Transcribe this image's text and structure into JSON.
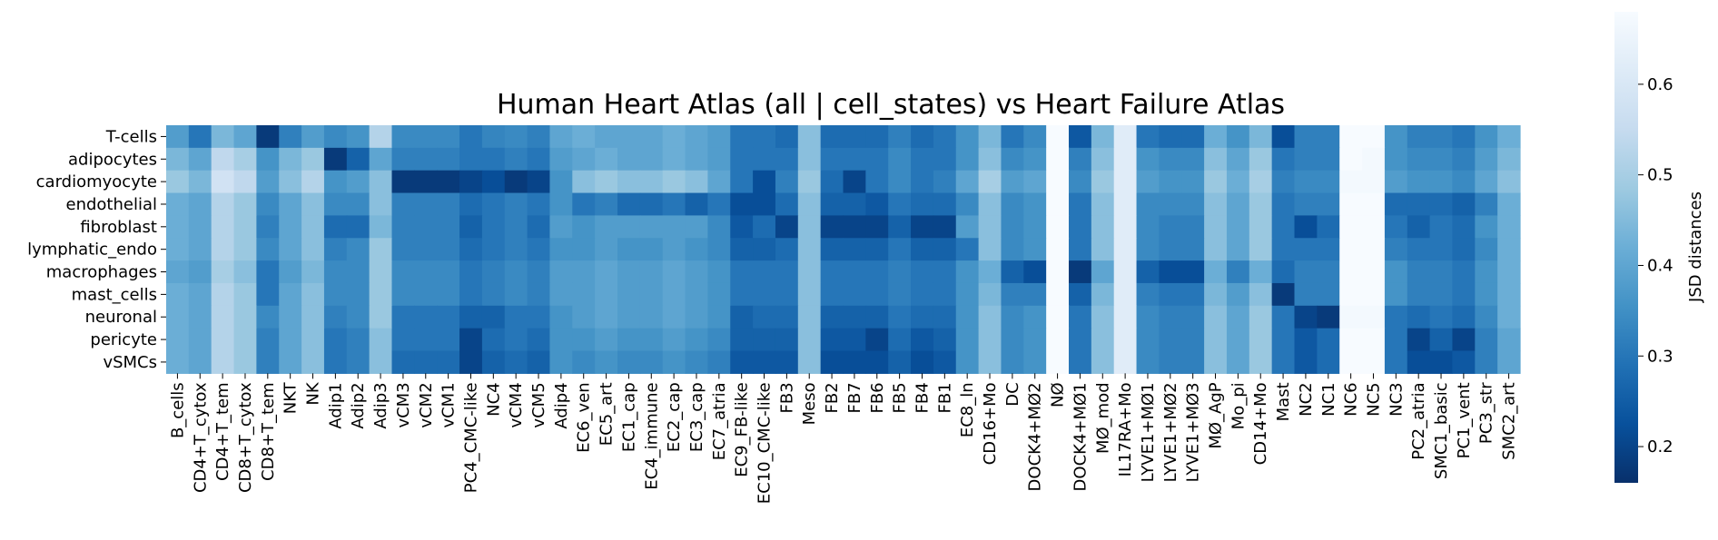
{
  "chart_data": {
    "type": "heatmap",
    "title": "Human Heart Atlas (all | cell_states) vs Heart Failure Atlas",
    "xlabel": "",
    "ylabel": "",
    "colorbar_label": "JSD distances",
    "colorbar_ticks": [
      "0.2",
      "0.3",
      "0.4",
      "0.5",
      "0.6"
    ],
    "vmin": 0.16,
    "vmax": 0.68,
    "colormap": [
      "#08306b",
      "#08519c",
      "#2171b5",
      "#4292c6",
      "#6baed6",
      "#9ecae1",
      "#c6dbef",
      "#deebf7",
      "#f7fbff"
    ],
    "rows": [
      "T-cells",
      "adipocytes",
      "cardiomyocyte",
      "endothelial",
      "fibroblast",
      "lymphatic_endo",
      "macrophages",
      "mast_cells",
      "neuronal",
      "pericyte",
      "vSMCs"
    ],
    "columns": [
      "B_cells",
      "CD4+T_cytox",
      "CD4+T_tem",
      "CD8+T_cytox",
      "CD8+T_tem",
      "NKT",
      "NK",
      "Adip1",
      "Adip2",
      "Adip3",
      "vCM3",
      "vCM2",
      "vCM1",
      "PC4_CMC-like",
      "NC4",
      "vCM4",
      "vCM5",
      "Adip4",
      "EC6_ven",
      "EC5_art",
      "EC1_cap",
      "EC4_immune",
      "EC2_cap",
      "EC3_cap",
      "EC7_atria",
      "EC9_FB-like",
      "EC10_CMC-like",
      "FB3",
      "Meso",
      "FB2",
      "FB7",
      "FB6",
      "FB5",
      "FB4",
      "FB1",
      "EC8_ln",
      "CD16+Mo",
      "DC",
      "DOCK4+MØ2",
      "NØ",
      "DOCK4+MØ1",
      "MØ_mod",
      "IL17RA+Mo",
      "LYVE1+MØ1",
      "LYVE1+MØ2",
      "LYVE1+MØ3",
      "MØ_AgP",
      "Mo_pi",
      "CD14+Mo",
      "Mast",
      "NC2",
      "NC1",
      "NC6",
      "NC5",
      "NC3",
      "PC2_atria",
      "SMC1_basic",
      "PC1_vent",
      "PC3_str",
      "SMC2_art"
    ],
    "values": [
      [
        0.38,
        0.3,
        0.44,
        0.4,
        0.18,
        0.32,
        0.38,
        0.34,
        0.36,
        0.52,
        0.34,
        0.34,
        0.34,
        0.3,
        0.33,
        0.34,
        0.32,
        0.4,
        0.42,
        0.4,
        0.4,
        0.4,
        0.42,
        0.4,
        0.38,
        0.3,
        0.3,
        0.28,
        0.46,
        0.28,
        0.28,
        0.28,
        0.32,
        0.28,
        0.3,
        0.36,
        0.44,
        0.3,
        0.34,
        0.68,
        0.24,
        0.44,
        0.62,
        0.3,
        0.28,
        0.28,
        0.42,
        0.36,
        0.44,
        0.22,
        0.32,
        0.32,
        0.68,
        0.68,
        0.36,
        0.32,
        0.32,
        0.3,
        0.36,
        0.42
      ],
      [
        0.44,
        0.4,
        0.54,
        0.5,
        0.36,
        0.44,
        0.48,
        0.18,
        0.26,
        0.4,
        0.32,
        0.32,
        0.32,
        0.3,
        0.3,
        0.32,
        0.3,
        0.38,
        0.4,
        0.42,
        0.4,
        0.4,
        0.42,
        0.4,
        0.38,
        0.3,
        0.3,
        0.3,
        0.46,
        0.3,
        0.3,
        0.3,
        0.34,
        0.3,
        0.3,
        0.36,
        0.46,
        0.34,
        0.36,
        0.68,
        0.32,
        0.46,
        0.62,
        0.36,
        0.34,
        0.34,
        0.46,
        0.4,
        0.48,
        0.3,
        0.32,
        0.32,
        0.68,
        0.67,
        0.36,
        0.34,
        0.34,
        0.32,
        0.38,
        0.44
      ],
      [
        0.48,
        0.44,
        0.58,
        0.54,
        0.38,
        0.46,
        0.52,
        0.36,
        0.38,
        0.46,
        0.18,
        0.18,
        0.18,
        0.2,
        0.22,
        0.18,
        0.2,
        0.36,
        0.46,
        0.48,
        0.46,
        0.46,
        0.48,
        0.46,
        0.4,
        0.3,
        0.22,
        0.32,
        0.48,
        0.28,
        0.2,
        0.3,
        0.34,
        0.3,
        0.32,
        0.4,
        0.5,
        0.38,
        0.4,
        0.68,
        0.34,
        0.48,
        0.62,
        0.38,
        0.36,
        0.36,
        0.48,
        0.42,
        0.5,
        0.32,
        0.34,
        0.34,
        0.67,
        0.67,
        0.38,
        0.36,
        0.36,
        0.34,
        0.4,
        0.46
      ],
      [
        0.42,
        0.4,
        0.52,
        0.48,
        0.34,
        0.4,
        0.46,
        0.34,
        0.34,
        0.46,
        0.32,
        0.32,
        0.32,
        0.28,
        0.3,
        0.32,
        0.3,
        0.36,
        0.3,
        0.32,
        0.28,
        0.28,
        0.3,
        0.26,
        0.3,
        0.22,
        0.22,
        0.28,
        0.46,
        0.26,
        0.26,
        0.24,
        0.3,
        0.28,
        0.28,
        0.34,
        0.46,
        0.34,
        0.36,
        0.68,
        0.3,
        0.46,
        0.62,
        0.34,
        0.34,
        0.34,
        0.46,
        0.4,
        0.48,
        0.3,
        0.32,
        0.32,
        0.68,
        0.68,
        0.28,
        0.28,
        0.28,
        0.26,
        0.32,
        0.42
      ],
      [
        0.42,
        0.4,
        0.52,
        0.48,
        0.32,
        0.4,
        0.46,
        0.28,
        0.28,
        0.44,
        0.32,
        0.32,
        0.32,
        0.26,
        0.3,
        0.32,
        0.28,
        0.38,
        0.36,
        0.38,
        0.38,
        0.38,
        0.38,
        0.38,
        0.34,
        0.24,
        0.28,
        0.2,
        0.46,
        0.2,
        0.2,
        0.2,
        0.26,
        0.2,
        0.2,
        0.38,
        0.46,
        0.34,
        0.36,
        0.68,
        0.3,
        0.46,
        0.62,
        0.34,
        0.32,
        0.32,
        0.46,
        0.4,
        0.48,
        0.3,
        0.22,
        0.28,
        0.68,
        0.68,
        0.3,
        0.26,
        0.3,
        0.28,
        0.36,
        0.42
      ],
      [
        0.42,
        0.4,
        0.52,
        0.48,
        0.34,
        0.4,
        0.46,
        0.32,
        0.34,
        0.48,
        0.32,
        0.32,
        0.32,
        0.28,
        0.3,
        0.32,
        0.3,
        0.36,
        0.36,
        0.38,
        0.36,
        0.36,
        0.38,
        0.36,
        0.34,
        0.26,
        0.26,
        0.28,
        0.46,
        0.26,
        0.26,
        0.26,
        0.3,
        0.26,
        0.26,
        0.3,
        0.46,
        0.34,
        0.36,
        0.68,
        0.3,
        0.46,
        0.62,
        0.34,
        0.32,
        0.32,
        0.46,
        0.4,
        0.48,
        0.3,
        0.3,
        0.3,
        0.68,
        0.68,
        0.32,
        0.3,
        0.3,
        0.28,
        0.34,
        0.42
      ],
      [
        0.4,
        0.38,
        0.5,
        0.46,
        0.3,
        0.38,
        0.44,
        0.34,
        0.34,
        0.48,
        0.34,
        0.34,
        0.34,
        0.3,
        0.32,
        0.34,
        0.32,
        0.38,
        0.38,
        0.4,
        0.38,
        0.38,
        0.4,
        0.38,
        0.36,
        0.3,
        0.3,
        0.3,
        0.46,
        0.3,
        0.3,
        0.3,
        0.32,
        0.3,
        0.3,
        0.36,
        0.42,
        0.26,
        0.22,
        0.68,
        0.18,
        0.4,
        0.62,
        0.26,
        0.22,
        0.22,
        0.42,
        0.32,
        0.42,
        0.28,
        0.32,
        0.32,
        0.68,
        0.68,
        0.36,
        0.32,
        0.32,
        0.3,
        0.36,
        0.42
      ],
      [
        0.42,
        0.4,
        0.52,
        0.48,
        0.3,
        0.4,
        0.46,
        0.34,
        0.34,
        0.48,
        0.34,
        0.34,
        0.34,
        0.3,
        0.32,
        0.34,
        0.32,
        0.38,
        0.38,
        0.4,
        0.38,
        0.38,
        0.4,
        0.38,
        0.36,
        0.3,
        0.3,
        0.3,
        0.46,
        0.3,
        0.3,
        0.3,
        0.32,
        0.3,
        0.3,
        0.36,
        0.44,
        0.32,
        0.32,
        0.68,
        0.26,
        0.44,
        0.62,
        0.32,
        0.3,
        0.3,
        0.44,
        0.38,
        0.46,
        0.18,
        0.32,
        0.32,
        0.68,
        0.68,
        0.36,
        0.32,
        0.32,
        0.3,
        0.36,
        0.42
      ],
      [
        0.42,
        0.4,
        0.52,
        0.48,
        0.34,
        0.4,
        0.46,
        0.32,
        0.34,
        0.48,
        0.3,
        0.3,
        0.3,
        0.26,
        0.26,
        0.3,
        0.3,
        0.36,
        0.38,
        0.4,
        0.38,
        0.38,
        0.4,
        0.38,
        0.36,
        0.26,
        0.28,
        0.28,
        0.46,
        0.26,
        0.26,
        0.26,
        0.3,
        0.28,
        0.28,
        0.36,
        0.46,
        0.34,
        0.36,
        0.68,
        0.3,
        0.46,
        0.62,
        0.34,
        0.32,
        0.32,
        0.46,
        0.4,
        0.48,
        0.3,
        0.2,
        0.18,
        0.67,
        0.67,
        0.3,
        0.28,
        0.3,
        0.28,
        0.34,
        0.42
      ],
      [
        0.42,
        0.4,
        0.52,
        0.48,
        0.32,
        0.4,
        0.46,
        0.3,
        0.32,
        0.46,
        0.3,
        0.3,
        0.3,
        0.2,
        0.28,
        0.3,
        0.28,
        0.36,
        0.36,
        0.38,
        0.36,
        0.36,
        0.38,
        0.36,
        0.34,
        0.26,
        0.26,
        0.26,
        0.46,
        0.24,
        0.24,
        0.2,
        0.28,
        0.24,
        0.26,
        0.36,
        0.46,
        0.34,
        0.36,
        0.68,
        0.3,
        0.46,
        0.62,
        0.34,
        0.32,
        0.32,
        0.46,
        0.4,
        0.48,
        0.3,
        0.24,
        0.28,
        0.68,
        0.68,
        0.3,
        0.2,
        0.26,
        0.2,
        0.32,
        0.4
      ],
      [
        0.42,
        0.4,
        0.52,
        0.48,
        0.32,
        0.4,
        0.46,
        0.3,
        0.32,
        0.46,
        0.28,
        0.28,
        0.28,
        0.2,
        0.26,
        0.28,
        0.26,
        0.36,
        0.34,
        0.36,
        0.34,
        0.34,
        0.36,
        0.34,
        0.32,
        0.24,
        0.24,
        0.24,
        0.46,
        0.22,
        0.22,
        0.22,
        0.26,
        0.22,
        0.24,
        0.36,
        0.46,
        0.34,
        0.36,
        0.68,
        0.3,
        0.46,
        0.62,
        0.34,
        0.32,
        0.32,
        0.46,
        0.4,
        0.48,
        0.3,
        0.24,
        0.28,
        0.68,
        0.68,
        0.3,
        0.22,
        0.22,
        0.24,
        0.32,
        0.4
      ]
    ]
  }
}
